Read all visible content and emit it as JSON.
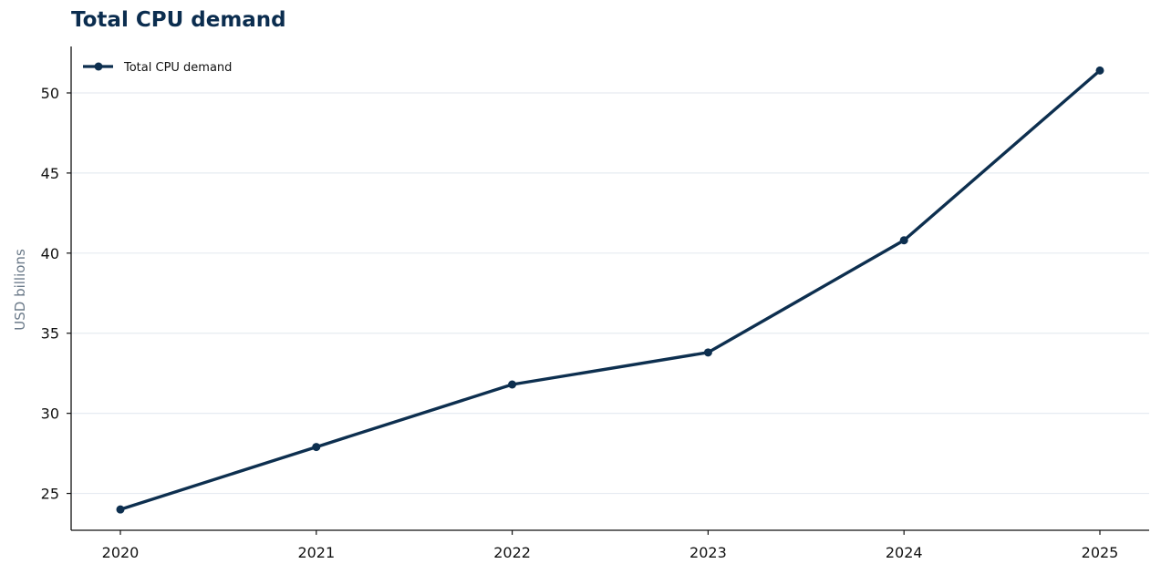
{
  "chart_data": {
    "type": "line",
    "title": "Total CPU demand",
    "xlabel": "",
    "ylabel": "USD billions",
    "x": [
      "2020",
      "2021",
      "2022",
      "2023",
      "2024",
      "2025"
    ],
    "series": [
      {
        "name": "Total CPU demand",
        "values": [
          24.0,
          27.9,
          31.8,
          33.8,
          40.8,
          51.4
        ],
        "color": "#0d2f4f",
        "marker": "circle"
      }
    ],
    "ylim": [
      22.7,
      52.9
    ],
    "yticks": [
      "25",
      "30",
      "35",
      "40",
      "45",
      "50"
    ],
    "grid": "horizontal",
    "grid_color": "#e6ebf1",
    "title_color": "#0b2d4f",
    "legend": "top-left"
  }
}
